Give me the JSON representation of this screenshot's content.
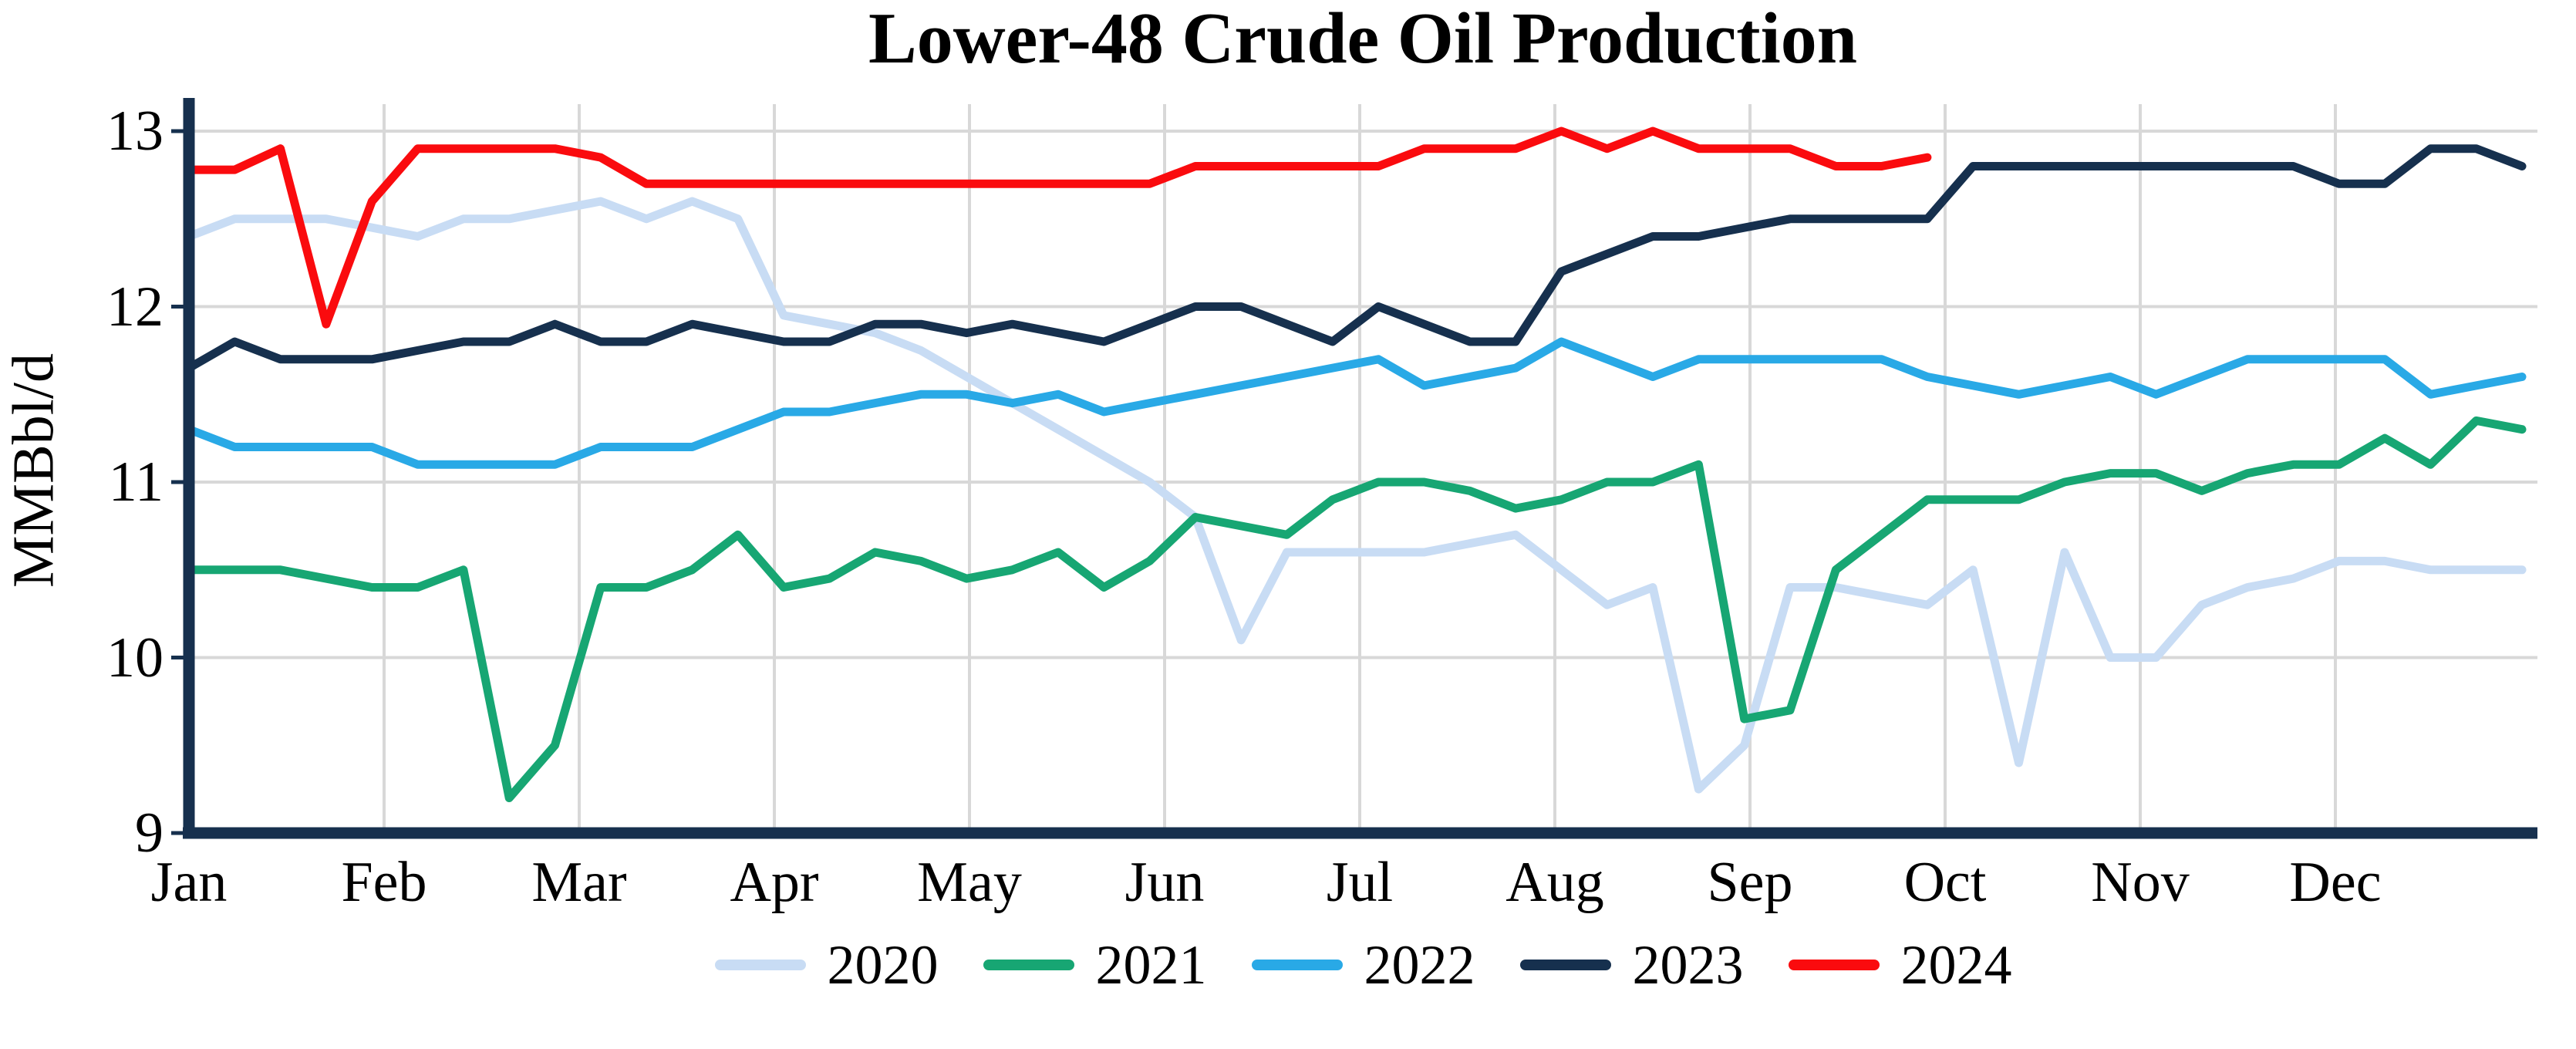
{
  "chart_data": {
    "type": "line",
    "title": "Lower-48 Crude Oil Production",
    "ylabel": "MMBbl/d",
    "x_unit": "week of year (weekly data, Jan through Dec)",
    "x_tick_labels": [
      "Jan",
      "Feb",
      "Mar",
      "Apr",
      "May",
      "Jun",
      "Jul",
      "Aug",
      "Sep",
      "Oct",
      "Nov",
      "Dec"
    ],
    "y_ticks": [
      13,
      12,
      11,
      10,
      9
    ],
    "ylim": [
      9,
      13.15
    ],
    "grid": "on",
    "gridline_color": "#d8d8d8",
    "axis_color": "#16304e",
    "legend_position": "bottom-center",
    "series": [
      {
        "name": "2020",
        "color": "#c8dcf4",
        "values": [
          12.4,
          12.5,
          12.5,
          12.5,
          12.45,
          12.4,
          12.5,
          12.5,
          12.55,
          12.6,
          12.5,
          12.6,
          12.5,
          11.95,
          11.9,
          11.85,
          11.75,
          11.6,
          11.45,
          11.3,
          11.15,
          11.0,
          10.8,
          10.1,
          10.6,
          10.6,
          10.6,
          10.6,
          10.65,
          10.7,
          10.5,
          10.3,
          10.4,
          9.25,
          9.5,
          10.4,
          10.4,
          10.35,
          10.3,
          10.5,
          9.4,
          10.6,
          10.0,
          10.0,
          10.3,
          10.4,
          10.45,
          10.55,
          10.55,
          10.5,
          10.5,
          10.5
        ]
      },
      {
        "name": "2021",
        "color": "#17a673",
        "values": [
          10.5,
          10.5,
          10.5,
          10.45,
          10.4,
          10.4,
          10.5,
          9.2,
          9.5,
          10.4,
          10.4,
          10.5,
          10.7,
          10.4,
          10.45,
          10.6,
          10.55,
          10.45,
          10.5,
          10.6,
          10.4,
          10.55,
          10.8,
          10.75,
          10.7,
          10.9,
          11.0,
          11.0,
          10.95,
          10.85,
          10.9,
          11.0,
          11.0,
          11.1,
          9.65,
          9.7,
          10.5,
          10.7,
          10.9,
          10.9,
          10.9,
          11.0,
          11.05,
          11.05,
          10.95,
          11.05,
          11.1,
          11.1,
          11.25,
          11.1,
          11.35,
          11.3
        ]
      },
      {
        "name": "2022",
        "color": "#29a9e6",
        "values": [
          11.3,
          11.2,
          11.2,
          11.2,
          11.2,
          11.1,
          11.1,
          11.1,
          11.1,
          11.2,
          11.2,
          11.2,
          11.3,
          11.4,
          11.4,
          11.45,
          11.5,
          11.5,
          11.45,
          11.5,
          11.4,
          11.45,
          11.5,
          11.55,
          11.6,
          11.65,
          11.7,
          11.55,
          11.6,
          11.65,
          11.8,
          11.7,
          11.6,
          11.7,
          11.7,
          11.7,
          11.7,
          11.7,
          11.6,
          11.55,
          11.5,
          11.55,
          11.6,
          11.5,
          11.6,
          11.7,
          11.7,
          11.7,
          11.7,
          11.5,
          11.55,
          11.6
        ]
      },
      {
        "name": "2023",
        "color": "#16304e",
        "values": [
          11.65,
          11.8,
          11.7,
          11.7,
          11.7,
          11.75,
          11.8,
          11.8,
          11.9,
          11.8,
          11.8,
          11.9,
          11.85,
          11.8,
          11.8,
          11.9,
          11.9,
          11.85,
          11.9,
          11.85,
          11.8,
          11.9,
          12.0,
          12.0,
          11.9,
          11.8,
          12.0,
          11.9,
          11.8,
          11.8,
          12.2,
          12.3,
          12.4,
          12.4,
          12.45,
          12.5,
          12.5,
          12.5,
          12.5,
          12.8,
          12.8,
          12.8,
          12.8,
          12.8,
          12.8,
          12.8,
          12.8,
          12.7,
          12.7,
          12.9,
          12.9,
          12.8
        ]
      },
      {
        "name": "2024",
        "color": "#fa0b0e",
        "values": [
          12.78,
          12.78,
          12.9,
          11.9,
          12.6,
          12.9,
          12.9,
          12.9,
          12.9,
          12.85,
          12.7,
          12.7,
          12.7,
          12.7,
          12.7,
          12.7,
          12.7,
          12.7,
          12.7,
          12.7,
          12.7,
          12.7,
          12.8,
          12.8,
          12.8,
          12.8,
          12.8,
          12.9,
          12.9,
          12.9,
          13.0,
          12.9,
          13.0,
          12.9,
          12.9,
          12.9,
          12.8,
          12.8,
          12.85
        ]
      }
    ]
  }
}
